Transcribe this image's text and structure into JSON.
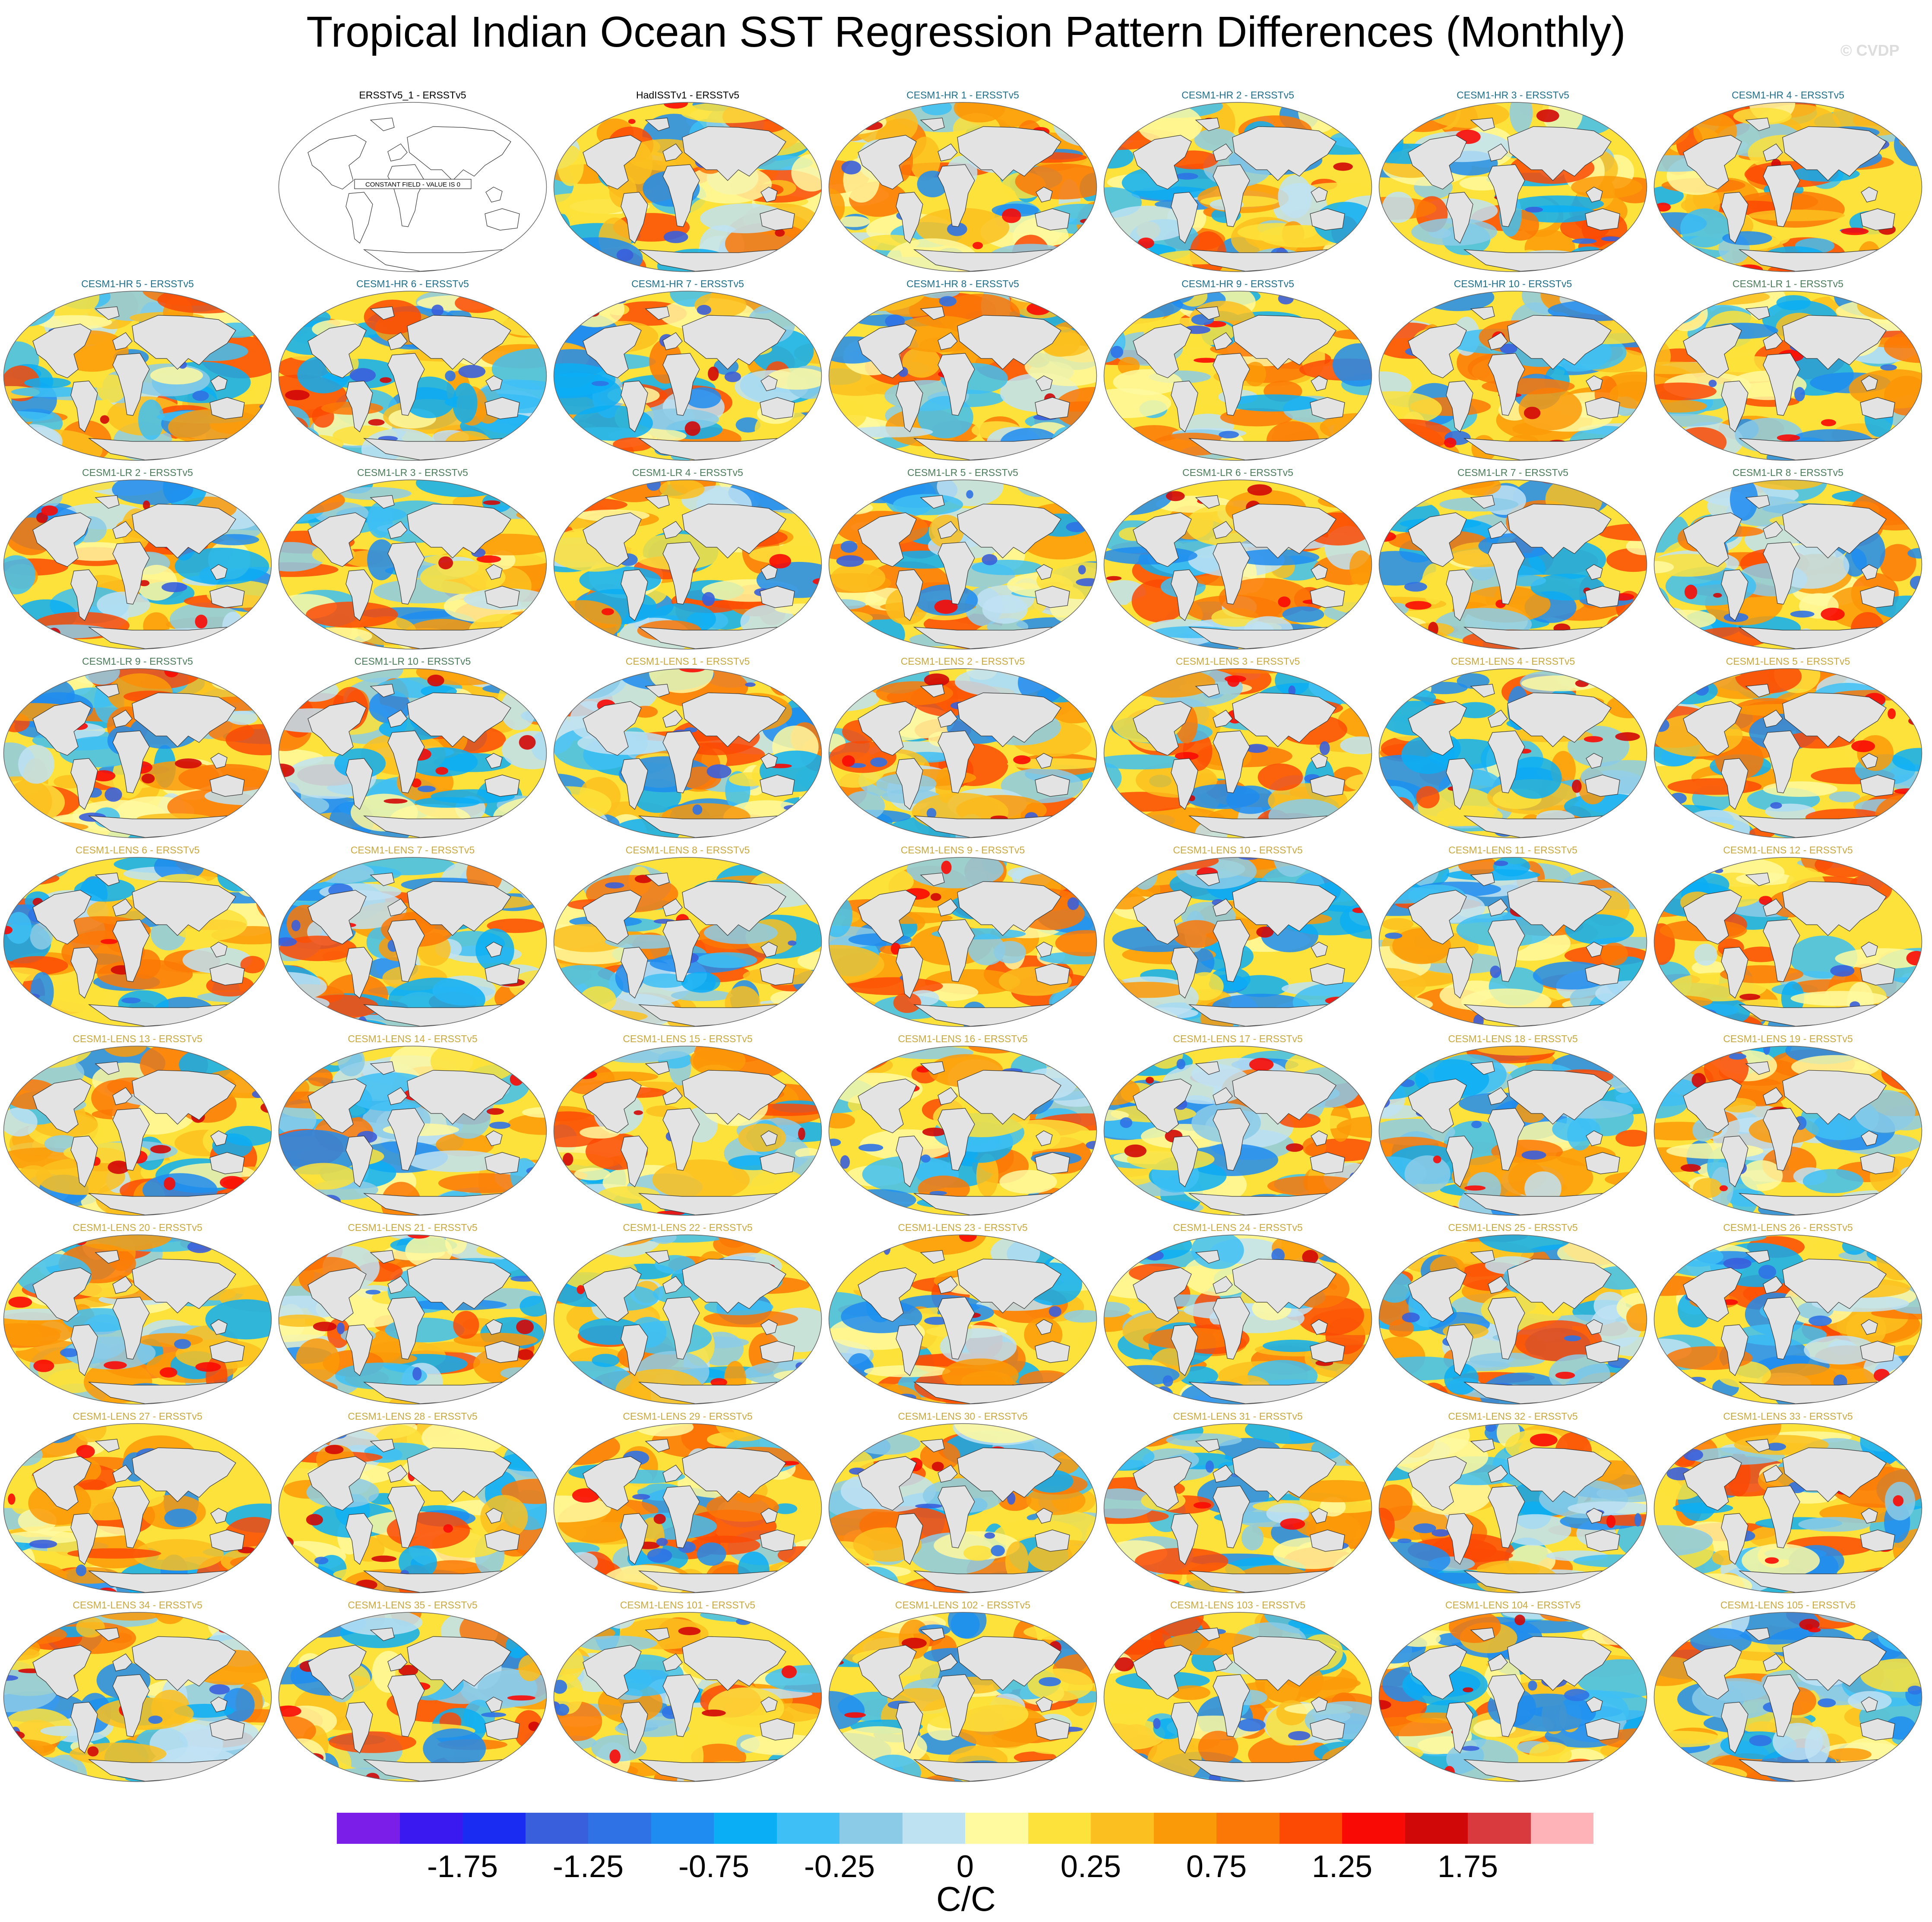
{
  "figure": {
    "title": "Tropical Indian Ocean SST Regression Pattern Differences (Monthly)",
    "credit": "© CVDP",
    "constant_field_note": "CONSTANT FIELD - VALUE IS 0"
  },
  "panels": [
    {
      "label": "ERSSTv5_1 - ERSSTv5",
      "group": "obs",
      "constant": true
    },
    {
      "label": "HadISSTv1 - ERSSTv5",
      "group": "obs"
    },
    {
      "label": "CESM1-HR 1 - ERSSTv5",
      "group": "hr"
    },
    {
      "label": "CESM1-HR 2 - ERSSTv5",
      "group": "hr"
    },
    {
      "label": "CESM1-HR 3 - ERSSTv5",
      "group": "hr"
    },
    {
      "label": "CESM1-HR 4 - ERSSTv5",
      "group": "hr"
    },
    {
      "label": "CESM1-HR 5 - ERSSTv5",
      "group": "hr"
    },
    {
      "label": "CESM1-HR 6 - ERSSTv5",
      "group": "hr"
    },
    {
      "label": "CESM1-HR 7 - ERSSTv5",
      "group": "hr"
    },
    {
      "label": "CESM1-HR 8 - ERSSTv5",
      "group": "hr"
    },
    {
      "label": "CESM1-HR 9 - ERSSTv5",
      "group": "hr"
    },
    {
      "label": "CESM1-HR 10 - ERSSTv5",
      "group": "hr"
    },
    {
      "label": "CESM1-LR 1 - ERSSTv5",
      "group": "lr"
    },
    {
      "label": "CESM1-LR 2 - ERSSTv5",
      "group": "lr"
    },
    {
      "label": "CESM1-LR 3 - ERSSTv5",
      "group": "lr"
    },
    {
      "label": "CESM1-LR 4 - ERSSTv5",
      "group": "lr"
    },
    {
      "label": "CESM1-LR 5 - ERSSTv5",
      "group": "lr"
    },
    {
      "label": "CESM1-LR 6 - ERSSTv5",
      "group": "lr"
    },
    {
      "label": "CESM1-LR 7 - ERSSTv5",
      "group": "lr"
    },
    {
      "label": "CESM1-LR 8 - ERSSTv5",
      "group": "lr"
    },
    {
      "label": "CESM1-LR 9 - ERSSTv5",
      "group": "lr"
    },
    {
      "label": "CESM1-LR 10 - ERSSTv5",
      "group": "lr"
    },
    {
      "label": "CESM1-LENS 1 - ERSSTv5",
      "group": "lens"
    },
    {
      "label": "CESM1-LENS 2 - ERSSTv5",
      "group": "lens"
    },
    {
      "label": "CESM1-LENS 3 - ERSSTv5",
      "group": "lens"
    },
    {
      "label": "CESM1-LENS 4 - ERSSTv5",
      "group": "lens"
    },
    {
      "label": "CESM1-LENS 5 - ERSSTv5",
      "group": "lens"
    },
    {
      "label": "CESM1-LENS 6 - ERSSTv5",
      "group": "lens"
    },
    {
      "label": "CESM1-LENS 7 - ERSSTv5",
      "group": "lens"
    },
    {
      "label": "CESM1-LENS 8 - ERSSTv5",
      "group": "lens"
    },
    {
      "label": "CESM1-LENS 9 - ERSSTv5",
      "group": "lens"
    },
    {
      "label": "CESM1-LENS 10 - ERSSTv5",
      "group": "lens"
    },
    {
      "label": "CESM1-LENS 11 - ERSSTv5",
      "group": "lens"
    },
    {
      "label": "CESM1-LENS 12 - ERSSTv5",
      "group": "lens"
    },
    {
      "label": "CESM1-LENS 13 - ERSSTv5",
      "group": "lens"
    },
    {
      "label": "CESM1-LENS 14 - ERSSTv5",
      "group": "lens"
    },
    {
      "label": "CESM1-LENS 15 - ERSSTv5",
      "group": "lens"
    },
    {
      "label": "CESM1-LENS 16 - ERSSTv5",
      "group": "lens"
    },
    {
      "label": "CESM1-LENS 17 - ERSSTv5",
      "group": "lens"
    },
    {
      "label": "CESM1-LENS 18 - ERSSTv5",
      "group": "lens"
    },
    {
      "label": "CESM1-LENS 19 - ERSSTv5",
      "group": "lens"
    },
    {
      "label": "CESM1-LENS 20 - ERSSTv5",
      "group": "lens"
    },
    {
      "label": "CESM1-LENS 21 - ERSSTv5",
      "group": "lens"
    },
    {
      "label": "CESM1-LENS 22 - ERSSTv5",
      "group": "lens"
    },
    {
      "label": "CESM1-LENS 23 - ERSSTv5",
      "group": "lens"
    },
    {
      "label": "CESM1-LENS 24 - ERSSTv5",
      "group": "lens"
    },
    {
      "label": "CESM1-LENS 25 - ERSSTv5",
      "group": "lens"
    },
    {
      "label": "CESM1-LENS 26 - ERSSTv5",
      "group": "lens"
    },
    {
      "label": "CESM1-LENS 27 - ERSSTv5",
      "group": "lens"
    },
    {
      "label": "CESM1-LENS 28 - ERSSTv5",
      "group": "lens"
    },
    {
      "label": "CESM1-LENS 29 - ERSSTv5",
      "group": "lens"
    },
    {
      "label": "CESM1-LENS 30 - ERSSTv5",
      "group": "lens"
    },
    {
      "label": "CESM1-LENS 31 - ERSSTv5",
      "group": "lens"
    },
    {
      "label": "CESM1-LENS 32 - ERSSTv5",
      "group": "lens"
    },
    {
      "label": "CESM1-LENS 33 - ERSSTv5",
      "group": "lens"
    },
    {
      "label": "CESM1-LENS 34 - ERSSTv5",
      "group": "lens"
    },
    {
      "label": "CESM1-LENS 35 - ERSSTv5",
      "group": "lens"
    },
    {
      "label": "CESM1-LENS 101 - ERSSTv5",
      "group": "lens"
    },
    {
      "label": "CESM1-LENS 102 - ERSSTv5",
      "group": "lens"
    },
    {
      "label": "CESM1-LENS 103 - ERSSTv5",
      "group": "lens"
    },
    {
      "label": "CESM1-LENS 104 - ERSSTv5",
      "group": "lens"
    },
    {
      "label": "CESM1-LENS 105 - ERSSTv5",
      "group": "lens"
    }
  ],
  "title_colors": {
    "obs": "#000000",
    "hr": "#1f6f8b",
    "lr": "#4c7d5a",
    "lens": "#c9a93f"
  },
  "colorbar": {
    "colors": [
      "#7b1fe8",
      "#3a18f0",
      "#1a2cf2",
      "#3a5fdc",
      "#2f72e6",
      "#1e8cf0",
      "#0aaef5",
      "#3ebff5",
      "#8ccbe8",
      "#bfe2f3",
      "#fff9a0",
      "#fde23b",
      "#fbbf1f",
      "#fb9a08",
      "#fc7806",
      "#fc4a05",
      "#f90a04",
      "#d10808",
      "#d83a3e",
      "#fdb3b8"
    ],
    "labels": [
      "-1.75",
      "-1.25",
      "-0.75",
      "-0.25",
      "0",
      "0.25",
      "0.75",
      "1.25",
      "1.75"
    ],
    "units": "C/C"
  }
}
